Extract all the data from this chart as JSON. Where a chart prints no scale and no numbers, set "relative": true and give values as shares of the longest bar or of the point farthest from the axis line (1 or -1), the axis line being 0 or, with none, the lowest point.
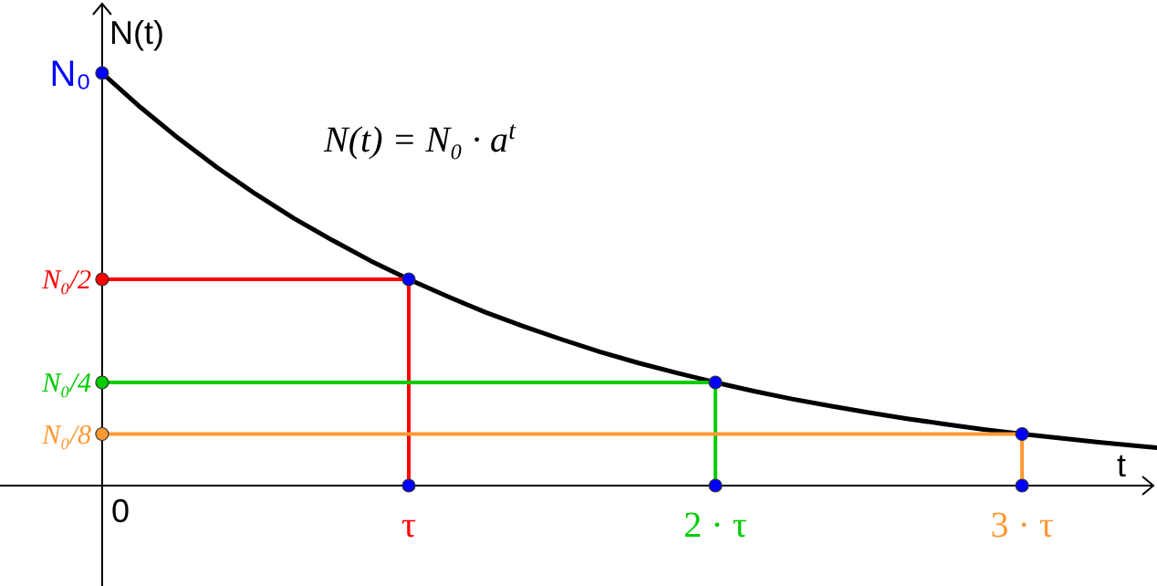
{
  "chart_data": {
    "type": "line",
    "relative": true,
    "xlabel": "t",
    "ylabel": "N(t)",
    "annotations": [
      "N(t) = N₀ · a$^{t}$",
      "0",
      "N₀",
      "N₀/2",
      "N₀/4",
      "N₀/8"
    ],
    "xlim": [
      -0.333,
      3.44
    ],
    "xticks": [
      {
        "value": 1,
        "label": "τ"
      },
      {
        "value": 2,
        "label": "2 · τ"
      },
      {
        "value": 3,
        "label": "3 · τ"
      }
    ],
    "series": [
      {
        "color": "#000000",
        "x": [
          0,
          0.125,
          0.25,
          0.375,
          0.5,
          0.625,
          0.75,
          0.875,
          1,
          1.125,
          1.25,
          1.375,
          1.5,
          1.625,
          1.75,
          1.875,
          2,
          2.125,
          2.25,
          2.375,
          2.5,
          2.625,
          2.75,
          2.875,
          3,
          3.125,
          3.25,
          3.375,
          3.44
        ],
        "values": [
          1,
          0.917,
          0.841,
          0.771,
          0.707,
          0.648,
          0.595,
          0.545,
          0.5,
          0.459,
          0.42,
          0.386,
          0.354,
          0.324,
          0.297,
          0.273,
          0.25,
          0.229,
          0.21,
          0.193,
          0.177,
          0.162,
          0.149,
          0.136,
          0.125,
          0.115,
          0.105,
          0.096,
          0.092
        ]
      },
      {
        "color": "#ff0000",
        "x": [
          0,
          1,
          1
        ],
        "values": [
          0.5,
          0.5,
          0
        ]
      },
      {
        "color": "#00cc00",
        "x": [
          0,
          2,
          2
        ],
        "values": [
          0.25,
          0.25,
          0
        ]
      },
      {
        "color": "#ff9933",
        "x": [
          0,
          3,
          3
        ],
        "values": [
          0.125,
          0.125,
          0
        ]
      },
      {
        "type": "scatter",
        "color": "#0000ff",
        "x": [
          1,
          2,
          3,
          1,
          2,
          3
        ],
        "values": [
          0.5,
          0.25,
          0.125,
          0,
          0,
          0
        ]
      },
      {
        "type": "scatter",
        "colors": [
          "#0000ff",
          "#ff0000",
          "#00cc00",
          "#ff9933"
        ],
        "x": [
          0,
          0,
          0,
          0
        ],
        "values": [
          1,
          0.5,
          0.25,
          0.125
        ]
      }
    ]
  }
}
